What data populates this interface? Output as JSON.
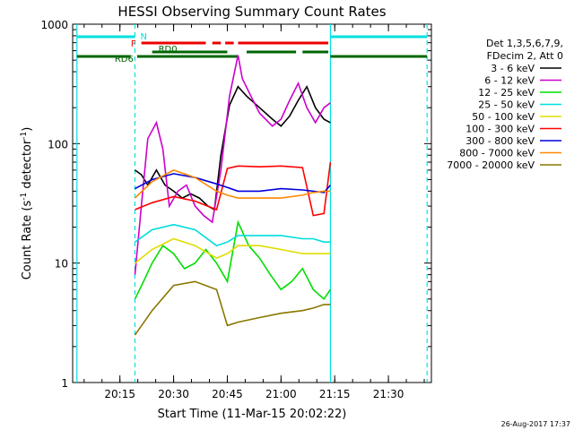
{
  "chart_data": {
    "type": "line",
    "title": "HESSI Observing Summary Count Rates",
    "xlabel": "Start Time (11-Mar-15 20:02:22)",
    "ylabel_main": "Count Rate (s",
    "ylabel_sup1": "-1",
    "ylabel_mid": " detector",
    "ylabel_sup2": "-1",
    "ylabel_end": ")",
    "yscale": "log",
    "ylim": [
      1,
      1000
    ],
    "xlim_minutes": [
      20.03,
      21.7
    ],
    "x_tick_labels": [
      "20:15",
      "20:30",
      "20:45",
      "21:00",
      "21:15",
      "21:30"
    ],
    "x_tick_values": [
      20.25,
      20.5,
      20.75,
      21.0,
      21.25,
      21.5
    ],
    "y_tick_labels": [
      "1",
      "10",
      "100",
      "1000"
    ],
    "y_tick_values": [
      1,
      10,
      100,
      1000
    ],
    "legend_header": [
      "Det 1,3,5,6,7,9,",
      "FDecim 2, Att 0"
    ],
    "legend_position": "right",
    "series": [
      {
        "name": "3 - 6 keV",
        "color": "#000000",
        "x": [
          20.32,
          20.35,
          20.38,
          20.42,
          20.46,
          20.5,
          20.54,
          20.58,
          20.62,
          20.66,
          20.69,
          20.72,
          20.76,
          20.8,
          20.84,
          20.9,
          20.96,
          21.0,
          21.04,
          21.08,
          21.12,
          21.16,
          21.2,
          21.23
        ],
        "y": [
          60,
          55,
          45,
          60,
          45,
          40,
          35,
          38,
          35,
          30,
          28,
          80,
          210,
          300,
          250,
          200,
          160,
          140,
          170,
          230,
          300,
          200,
          160,
          150
        ]
      },
      {
        "name": "6 - 12 keV",
        "color": "#cc00cc",
        "x": [
          20.32,
          20.35,
          20.38,
          20.42,
          20.45,
          20.48,
          20.52,
          20.56,
          20.6,
          20.64,
          20.68,
          20.72,
          20.76,
          20.8,
          20.82,
          20.86,
          20.9,
          20.96,
          21.0,
          21.04,
          21.08,
          21.12,
          21.16,
          21.2,
          21.23
        ],
        "y": [
          8,
          30,
          110,
          150,
          90,
          30,
          40,
          45,
          30,
          25,
          22,
          60,
          250,
          550,
          350,
          250,
          180,
          140,
          160,
          230,
          320,
          200,
          150,
          200,
          220
        ]
      },
      {
        "name": "12 - 25 keV",
        "color": "#00dd00",
        "x": [
          20.32,
          20.36,
          20.4,
          20.45,
          20.5,
          20.55,
          20.6,
          20.65,
          20.7,
          20.75,
          20.8,
          20.85,
          20.9,
          20.95,
          21.0,
          21.05,
          21.1,
          21.15,
          21.2,
          21.23
        ],
        "y": [
          5,
          7,
          10,
          14,
          12,
          9,
          10,
          13,
          10,
          7,
          22,
          14,
          11,
          8,
          6,
          7,
          9,
          6,
          5,
          6
        ]
      },
      {
        "name": "25 - 50 keV",
        "color": "#00dddd",
        "x": [
          20.32,
          20.4,
          20.5,
          20.6,
          20.7,
          20.75,
          20.8,
          20.9,
          21.0,
          21.1,
          21.15,
          21.2,
          21.23
        ],
        "y": [
          15,
          19,
          21,
          19,
          14,
          15,
          17,
          17,
          17,
          16,
          16,
          15,
          15
        ]
      },
      {
        "name": "50 - 100 keV",
        "color": "#dddd00",
        "x": [
          20.32,
          20.4,
          20.5,
          20.6,
          20.7,
          20.75,
          20.8,
          20.9,
          21.0,
          21.1,
          21.15,
          21.2,
          21.23
        ],
        "y": [
          10,
          13,
          16,
          14,
          11,
          12,
          14,
          14,
          13,
          12,
          12,
          12,
          12
        ]
      },
      {
        "name": "100 - 300 keV",
        "color": "#ff0000",
        "x": [
          20.32,
          20.4,
          20.5,
          20.6,
          20.7,
          20.75,
          20.8,
          20.9,
          21.0,
          21.1,
          21.15,
          21.2,
          21.23
        ],
        "y": [
          28,
          32,
          36,
          33,
          28,
          62,
          65,
          64,
          65,
          63,
          25,
          26,
          70
        ]
      },
      {
        "name": "300 - 800 keV",
        "color": "#0000dd",
        "x": [
          20.32,
          20.4,
          20.5,
          20.6,
          20.7,
          20.75,
          20.8,
          20.9,
          21.0,
          21.1,
          21.15,
          21.2,
          21.23
        ],
        "y": [
          42,
          50,
          56,
          52,
          46,
          43,
          40,
          40,
          42,
          41,
          40,
          39,
          45
        ]
      },
      {
        "name": "800 - 7000 keV",
        "color": "#ff8800",
        "x": [
          20.32,
          20.4,
          20.5,
          20.6,
          20.7,
          20.75,
          20.8,
          20.9,
          21.0,
          21.1,
          21.15,
          21.2,
          21.23
        ],
        "y": [
          35,
          48,
          60,
          52,
          40,
          37,
          35,
          35,
          35,
          37,
          39,
          40,
          40
        ]
      },
      {
        "name": "7000 - 20000 keV",
        "color": "#887700",
        "x": [
          20.32,
          20.4,
          20.5,
          20.6,
          20.7,
          20.75,
          20.8,
          20.9,
          21.0,
          21.1,
          21.15,
          21.2,
          21.23
        ],
        "y": [
          2.5,
          4,
          6.5,
          7,
          6,
          3,
          3.2,
          3.5,
          3.8,
          4,
          4.2,
          4.5,
          4.5
        ]
      }
    ],
    "status_bars": [
      {
        "label": "N",
        "color": "#00e0e0",
        "segments": [
          [
            20.05,
            20.32
          ],
          [
            21.23,
            21.68
          ]
        ]
      },
      {
        "label": "F",
        "color": "#ee0000",
        "segments": [
          [
            20.35,
            20.65
          ],
          [
            20.68,
            20.72
          ],
          [
            20.74,
            20.78
          ],
          [
            20.8,
            21.22
          ]
        ]
      },
      {
        "label": "RD0",
        "color": "#006600",
        "segments": [
          [
            20.4,
            20.75
          ],
          [
            20.84,
            21.07
          ],
          [
            21.1,
            21.22
          ]
        ]
      },
      {
        "label": "RD6",
        "color": "#006600",
        "segments": [
          [
            20.05,
            20.3
          ],
          [
            20.33,
            20.8
          ],
          [
            21.23,
            21.68
          ]
        ]
      }
    ],
    "vertical_lines": [
      {
        "x": 20.05,
        "color": "#00e0e0",
        "style": "solid"
      },
      {
        "x": 20.32,
        "color": "#00e0e0",
        "style": "dashed"
      },
      {
        "x": 21.23,
        "color": "#00e0e0",
        "style": "solid"
      },
      {
        "x": 21.68,
        "color": "#00e0e0",
        "style": "dashed"
      }
    ]
  },
  "footer": {
    "timestamp": "26-Aug-2017 17:37"
  }
}
